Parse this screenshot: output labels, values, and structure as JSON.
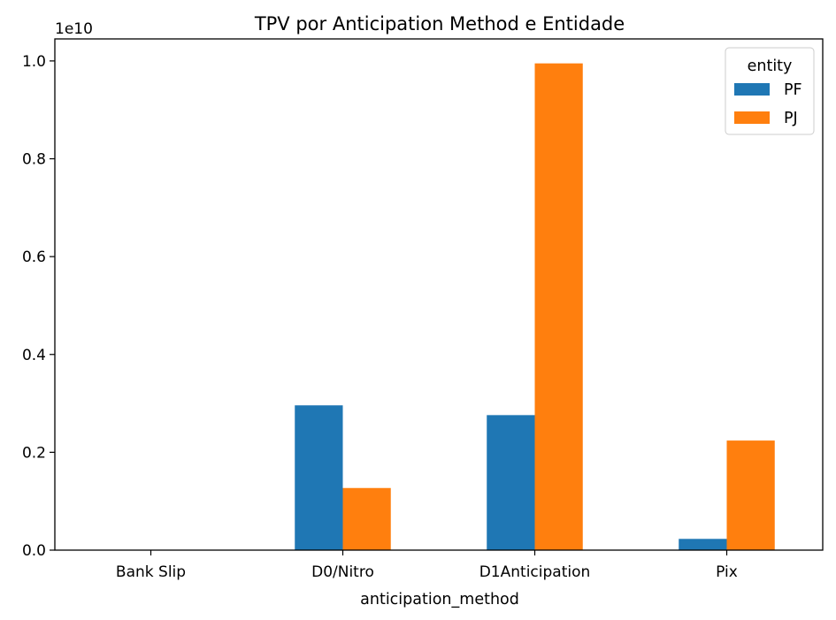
{
  "chart_data": {
    "type": "bar",
    "title": "TPV por Anticipation Method e Entidade",
    "xlabel": "anticipation_method",
    "ylabel": "",
    "y_offset_label": "1e10",
    "y_scale": 10000000000,
    "categories": [
      "Bank Slip",
      "D0/Nitro",
      "D1Anticipation",
      "Pix"
    ],
    "series": [
      {
        "name": "PF",
        "color": "#1f77b4",
        "values": [
          0,
          2.96,
          2.76,
          0.23
        ]
      },
      {
        "name": "PJ",
        "color": "#ff7f0e",
        "values": [
          0.003,
          1.27,
          9.95,
          2.24
        ]
      }
    ],
    "ylim": [
      0,
      10.45
    ],
    "yticks": [
      0,
      2,
      4,
      6,
      8,
      10
    ],
    "ytick_labels": [
      "0.0",
      "0.2",
      "0.4",
      "0.6",
      "0.8",
      "1.0"
    ],
    "legend": {
      "title": "entity",
      "placement": "top-right"
    },
    "grid": false
  }
}
